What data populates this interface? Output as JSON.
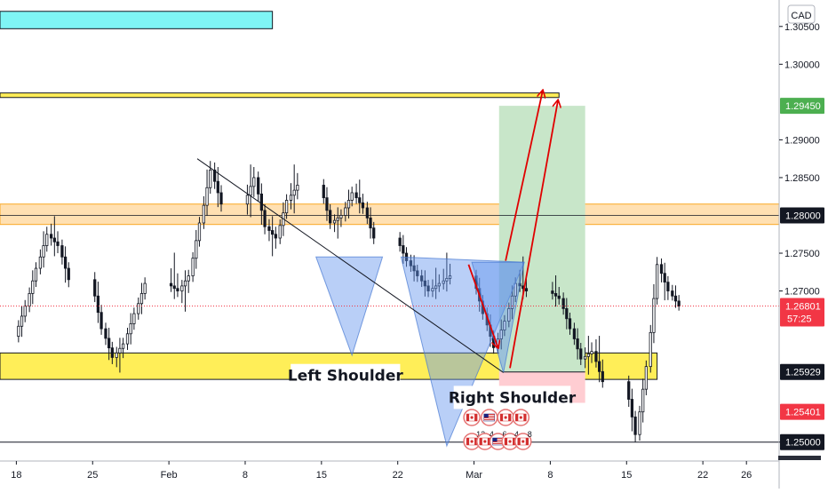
{
  "chart_data": {
    "type": "candlestick",
    "currency": "CAD",
    "ylim": [
      1.2475,
      1.3085
    ],
    "y_ticks": [
      "1.30500",
      "1.30000",
      "1.29000",
      "1.28500",
      "1.27500",
      "1.27000",
      "1.25000"
    ],
    "x_ticks": [
      {
        "label": "18",
        "day": 0
      },
      {
        "label": "25",
        "day": 7
      },
      {
        "label": "Feb",
        "day": 14
      },
      {
        "label": "8",
        "day": 21
      },
      {
        "label": "15",
        "day": 28
      },
      {
        "label": "22",
        "day": 35
      },
      {
        "label": "Mar",
        "day": 42
      },
      {
        "label": "8",
        "day": 49
      },
      {
        "label": "15",
        "day": 56
      },
      {
        "label": "22",
        "day": 63
      },
      {
        "label": "26",
        "day": 67
      }
    ],
    "x_range_days": [
      -1.5,
      70
    ],
    "price_badges": [
      {
        "label": "1.29450",
        "price": 1.2945,
        "color": "#4caf50"
      },
      {
        "label": "1.28000",
        "price": 1.28,
        "color": "#131722"
      },
      {
        "label": "1.26801",
        "sublabel": "57:25",
        "price": 1.26801,
        "color": "#f23645"
      },
      {
        "label": "1.25929",
        "price": 1.25929,
        "color": "#131722"
      },
      {
        "label": "1.25401",
        "price": 1.25401,
        "color": "#f23645"
      },
      {
        "label": "1.25000",
        "price": 1.25,
        "color": "#131722"
      }
    ],
    "current_price": 1.26801,
    "zones": [
      {
        "name": "cyan-box",
        "x0": -1.5,
        "x1": 23.5,
        "y0": 1.307,
        "y1": 1.3047,
        "fill": "#7ff5f5",
        "stroke": "#131722"
      },
      {
        "name": "top-resistance",
        "x0": -1.5,
        "x1": 49.8,
        "y0": 1.2962,
        "y1": 1.2956,
        "fill": "#ffee58",
        "stroke": "#131722"
      },
      {
        "name": "mid-resistance",
        "x0": -1.5,
        "x1": 70,
        "y0": 1.2815,
        "y1": 1.2788,
        "fill": "#ffe0b2",
        "stroke": "#f9a825"
      },
      {
        "name": "support-zone",
        "x0": -1.5,
        "x1": 58.8,
        "y0": 1.2618,
        "y1": 1.2583,
        "fill": "#ffee58",
        "stroke": "#131722"
      },
      {
        "name": "profit-box",
        "x0": 44.3,
        "x1": 52.2,
        "y0": 1.2945,
        "y1": 1.2593,
        "fill": "#c8e6c9",
        "stroke": "none"
      },
      {
        "name": "loss-box",
        "x0": 44.3,
        "x1": 52.2,
        "y0": 1.2593,
        "y1": 1.2552,
        "fill": "#ffcdd2",
        "stroke": "none"
      }
    ],
    "shoulders": [
      {
        "points": [
          [
            27.5,
            1.2745
          ],
          [
            30.8,
            1.2615
          ],
          [
            33.6,
            1.2745
          ]
        ]
      },
      {
        "points": [
          [
            35.3,
            1.2745
          ],
          [
            39.5,
            1.2495
          ],
          [
            46.6,
            1.2738
          ]
        ]
      },
      {
        "points": [
          [
            41.8,
            1.2738
          ],
          [
            44.7,
            1.2592
          ],
          [
            46.6,
            1.2738
          ]
        ]
      }
    ],
    "trendline": [
      [
        16.6,
        1.2875
      ],
      [
        44.7,
        1.2592
      ]
    ],
    "arrows": [
      [
        [
          44.9,
          1.274
        ],
        [
          48.3,
          1.2965
        ]
      ],
      [
        [
          45.3,
          1.2598
        ],
        [
          49.7,
          1.2952
        ]
      ],
      [
        [
          41.5,
          1.2735
        ],
        [
          44.2,
          1.2625
        ]
      ]
    ],
    "annotations": [
      {
        "text": "Left Shoulder",
        "day": 30.2,
        "price": 1.2587
      },
      {
        "text": "Right Shoulder",
        "day": 45.5,
        "price": 1.2558
      }
    ],
    "candles": [
      [
        1.264,
        1.269,
        1.263,
        1.268
      ],
      [
        1.268,
        1.274,
        1.267,
        1.273
      ],
      [
        1.273,
        1.279,
        1.272,
        1.2775
      ],
      [
        1.2775,
        1.28,
        1.2745,
        1.276
      ],
      [
        1.276,
        1.277,
        1.27,
        1.2715
      ],
      [
        1.2715,
        1.273,
        1.264,
        1.265
      ],
      [
        1.265,
        1.266,
        1.26,
        1.2612
      ],
      [
        1.2612,
        1.264,
        1.259,
        1.263
      ],
      [
        1.263,
        1.268,
        1.262,
        1.267
      ],
      [
        1.267,
        1.272,
        1.266,
        1.271
      ],
      [
        1.271,
        1.275,
        1.269,
        1.27
      ],
      [
        1.27,
        1.273,
        1.267,
        1.272
      ],
      [
        1.272,
        1.28,
        1.271,
        1.279
      ],
      [
        1.279,
        1.288,
        1.278,
        1.286
      ],
      [
        1.286,
        1.2875,
        1.28,
        1.2815
      ],
      [
        1.2815,
        1.2875,
        1.279,
        1.285
      ],
      [
        1.285,
        1.286,
        1.277,
        1.2785
      ],
      [
        1.2785,
        1.28,
        1.2745,
        1.277
      ],
      [
        1.277,
        1.283,
        1.276,
        1.282
      ],
      [
        1.282,
        1.287,
        1.28,
        1.284
      ],
      [
        1.284,
        1.285,
        1.278,
        1.279
      ],
      [
        1.279,
        1.281,
        1.277,
        1.28
      ],
      [
        1.28,
        1.284,
        1.279,
        1.283
      ],
      [
        1.283,
        1.285,
        1.28,
        1.281
      ],
      [
        1.281,
        1.282,
        1.276,
        1.277
      ],
      [
        1.277,
        1.278,
        1.273,
        1.274
      ],
      [
        1.274,
        1.275,
        1.271,
        1.272
      ],
      [
        1.272,
        1.273,
        1.269,
        1.27
      ],
      [
        1.27,
        1.273,
        1.269,
        1.271
      ],
      [
        1.271,
        1.275,
        1.27,
        1.272
      ],
      [
        1.272,
        1.273,
        1.266,
        1.267
      ],
      [
        1.267,
        1.268,
        1.2615,
        1.2625
      ],
      [
        1.2625,
        1.267,
        1.2615,
        1.266
      ],
      [
        1.266,
        1.272,
        1.265,
        1.271
      ],
      [
        1.271,
        1.2745,
        1.269,
        1.27
      ],
      [
        1.27,
        1.272,
        1.268,
        1.269
      ],
      [
        1.269,
        1.27,
        1.264,
        1.265
      ],
      [
        1.265,
        1.266,
        1.26,
        1.261
      ],
      [
        1.261,
        1.264,
        1.259,
        1.262
      ],
      [
        1.262,
        1.265,
        1.257,
        1.258
      ],
      [
        1.258,
        1.259,
        1.2495,
        1.251
      ],
      [
        1.251,
        1.261,
        1.25,
        1.26
      ],
      [
        1.26,
        1.275,
        1.259,
        1.2735
      ],
      [
        1.2735,
        1.2745,
        1.268,
        1.27
      ],
      [
        1.27,
        1.271,
        1.2675,
        1.268
      ]
    ],
    "events": [
      {
        "flag": "ca",
        "day": 41.8,
        "row": 0
      },
      {
        "flag": "us",
        "day": 43.4,
        "row": 0
      },
      {
        "flag": "ca",
        "day": 44.9,
        "row": 0
      },
      {
        "flag": "ca",
        "day": 46.3,
        "row": 0
      },
      {
        "flag": "ca",
        "day": 41.8,
        "row": 1,
        "count": "12"
      },
      {
        "flag": "ca",
        "day": 43.0,
        "row": 1,
        "count": "4"
      },
      {
        "flag": "us",
        "day": 44.2,
        "row": 1,
        "count": "6"
      },
      {
        "flag": "ca",
        "day": 45.3,
        "row": 1,
        "count": "4"
      },
      {
        "flag": "ca",
        "day": 46.5,
        "row": 1,
        "count": "8"
      }
    ]
  }
}
